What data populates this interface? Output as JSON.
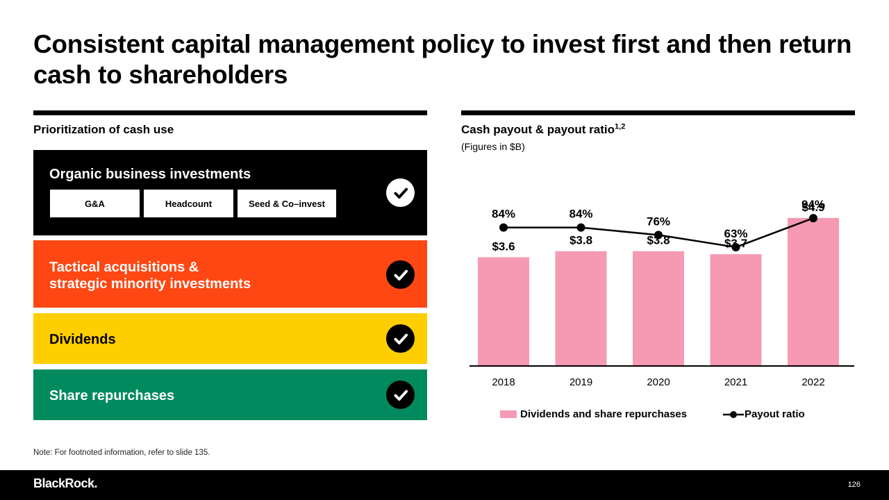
{
  "title": "Consistent capital management policy to invest first and then return cash to shareholders",
  "left": {
    "heading": "Prioritization of cash use",
    "bands": [
      {
        "title": "Organic business investments",
        "tags": [
          "G&A",
          "Headcount",
          "Seed & Co–invest"
        ],
        "color": "#000000"
      },
      {
        "title_line1": "Tactical acquisitions &",
        "title_line2": "strategic minority investments",
        "color": "#ff4713"
      },
      {
        "title": "Dividends",
        "color": "#ffce00"
      },
      {
        "title": "Share repurchases",
        "color": "#008a5e"
      }
    ]
  },
  "right": {
    "heading": "Cash payout & payout ratio",
    "heading_sup": "1,2",
    "subheading": "(Figures in $B)"
  },
  "chart_data": {
    "type": "bar",
    "title": "Cash payout & payout ratio",
    "categories": [
      "2018",
      "2019",
      "2020",
      "2021",
      "2022"
    ],
    "series": [
      {
        "name": "Dividends and share repurchases",
        "type": "bar",
        "values": [
          3.6,
          3.8,
          3.8,
          3.7,
          4.9
        ],
        "labels": [
          "$3.6",
          "$3.8",
          "$3.8",
          "$3.7",
          "$4.9"
        ],
        "color": "#f59ab2"
      },
      {
        "name": "Payout ratio",
        "type": "line",
        "values": [
          84,
          84,
          76,
          63,
          94
        ],
        "labels": [
          "84%",
          "84%",
          "76%",
          "63%",
          "94%"
        ],
        "color": "#000000"
      }
    ],
    "ylim_bar": [
      0,
      5.5
    ],
    "ylim_line": [
      0,
      100
    ],
    "legend": "bottom"
  },
  "legend": {
    "bars": "Dividends and share repurchases",
    "line": "Payout ratio"
  },
  "note": "Note: For footnoted information, refer to slide 135.",
  "footer": {
    "logo": "BlackRock.",
    "page": "126"
  }
}
